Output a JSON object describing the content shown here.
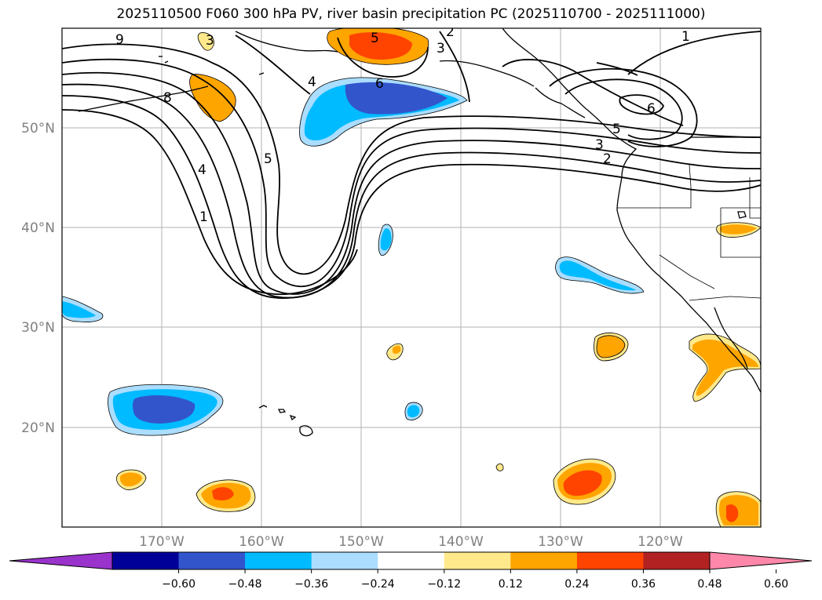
{
  "title": "2025110500 F060 300 hPa PV, river basin precipitation PC (2025110700 - 2025111000)",
  "map": {
    "lat_labels": [
      "50°N",
      "40°N",
      "30°N",
      "20°N"
    ],
    "lon_labels": [
      "170°W",
      "160°W",
      "150°W",
      "140°W",
      "130°W",
      "120°W"
    ],
    "contour_labels": [
      "9",
      "3",
      "5",
      "2",
      "3",
      "1",
      "8",
      "4",
      "6",
      "4",
      "5",
      "1",
      "6",
      "5",
      "3",
      "2"
    ]
  },
  "colorbar": {
    "colors": [
      "#9933cc",
      "#000099",
      "#3355cc",
      "#00bbff",
      "#aaddff",
      "#ffffff",
      "#ffe98a",
      "#ffa500",
      "#ff4400",
      "#b22222",
      "#ff88aa"
    ],
    "tick_labels": [
      "−0.60",
      "−0.48",
      "−0.36",
      "−0.24",
      "−0.12",
      "0.12",
      "0.24",
      "0.36",
      "0.48",
      "0.60"
    ]
  }
}
